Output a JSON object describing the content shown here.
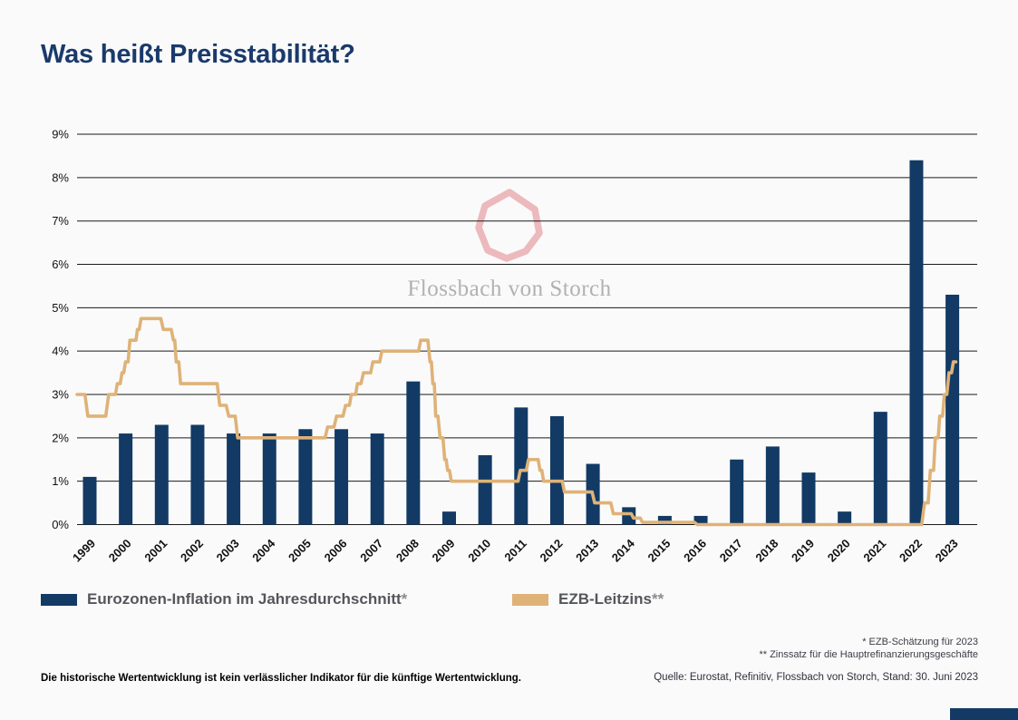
{
  "page": {
    "title": "Was heißt Preisstabilität?"
  },
  "legend": {
    "series1_label": "Eurozonen-Inflation im Jahresdurchschnitt",
    "series1_mark": "*",
    "series2_label": "EZB-Leitzins",
    "series2_mark": "**"
  },
  "footnotes": {
    "line1": "* EZB-Schätzung für 2023",
    "line2": "** Zinssatz für die Hauptrefinanzierungsgeschäfte"
  },
  "disclaimer": "Die historische Wertentwicklung ist kein verlässlicher Indikator für die künftige Wertentwicklung.",
  "source": "Quelle: Eurostat, Refinitiv, Flossbach von Storch, Stand: 30. Juni 2023",
  "watermark": {
    "text": "Flossbach von Storch"
  },
  "colors": {
    "bar": "#123a65",
    "line": "#dfb277",
    "title": "#1a3a6b",
    "grid": "#1a1a1a",
    "axis_text": "#111111",
    "legend_text": "#55565b",
    "watermark_logo": "#eab3b6",
    "watermark_text": "#b2b1b1"
  },
  "chart_data": {
    "type": "bar",
    "title": "",
    "xlabel": "",
    "ylabel": "",
    "ylim": [
      0,
      9
    ],
    "grid": "horizontal",
    "legend_position": "bottom",
    "y_ticks": [
      "0%",
      "1%",
      "2%",
      "3%",
      "4%",
      "5%",
      "6%",
      "7%",
      "8%",
      "9%"
    ],
    "categories": [
      "1999",
      "2000",
      "2001",
      "2002",
      "2003",
      "2004",
      "2005",
      "2006",
      "2007",
      "2008",
      "2009",
      "2010",
      "2011",
      "2012",
      "2013",
      "2014",
      "2015",
      "2016",
      "2017",
      "2018",
      "2019",
      "2020",
      "2021",
      "2022",
      "2023"
    ],
    "series": [
      {
        "name": "Eurozonen-Inflation im Jahresdurchschnitt*",
        "type": "bar",
        "values": [
          1.1,
          2.1,
          2.3,
          2.3,
          2.1,
          2.1,
          2.2,
          2.2,
          2.1,
          3.3,
          0.3,
          1.6,
          2.7,
          2.5,
          1.4,
          0.4,
          0.2,
          0.2,
          1.5,
          1.8,
          1.2,
          0.3,
          2.6,
          8.4,
          5.3
        ]
      },
      {
        "name": "EZB-Leitzins**",
        "type": "line",
        "points": [
          [
            1999.0,
            3.0
          ],
          [
            1999.22,
            3.0
          ],
          [
            1999.3,
            2.5
          ],
          [
            1999.8,
            2.5
          ],
          [
            1999.88,
            3.0
          ],
          [
            2000.07,
            3.0
          ],
          [
            2000.12,
            3.25
          ],
          [
            2000.2,
            3.25
          ],
          [
            2000.25,
            3.5
          ],
          [
            2000.3,
            3.5
          ],
          [
            2000.35,
            3.75
          ],
          [
            2000.42,
            3.75
          ],
          [
            2000.47,
            4.25
          ],
          [
            2000.64,
            4.25
          ],
          [
            2000.68,
            4.5
          ],
          [
            2000.73,
            4.5
          ],
          [
            2000.78,
            4.75
          ],
          [
            2001.33,
            4.75
          ],
          [
            2001.4,
            4.5
          ],
          [
            2001.62,
            4.5
          ],
          [
            2001.68,
            4.25
          ],
          [
            2001.72,
            4.25
          ],
          [
            2001.76,
            3.75
          ],
          [
            2001.83,
            3.75
          ],
          [
            2001.88,
            3.25
          ],
          [
            2002.9,
            3.25
          ],
          [
            2002.97,
            2.75
          ],
          [
            2003.15,
            2.75
          ],
          [
            2003.22,
            2.5
          ],
          [
            2003.4,
            2.5
          ],
          [
            2003.47,
            2.0
          ],
          [
            2005.9,
            2.0
          ],
          [
            2005.97,
            2.25
          ],
          [
            2006.15,
            2.25
          ],
          [
            2006.22,
            2.5
          ],
          [
            2006.4,
            2.5
          ],
          [
            2006.47,
            2.75
          ],
          [
            2006.58,
            2.75
          ],
          [
            2006.63,
            3.0
          ],
          [
            2006.75,
            3.0
          ],
          [
            2006.8,
            3.25
          ],
          [
            2006.9,
            3.25
          ],
          [
            2006.97,
            3.5
          ],
          [
            2007.17,
            3.5
          ],
          [
            2007.23,
            3.75
          ],
          [
            2007.42,
            3.75
          ],
          [
            2007.48,
            4.0
          ],
          [
            2008.5,
            4.0
          ],
          [
            2008.56,
            4.25
          ],
          [
            2008.76,
            4.25
          ],
          [
            2008.82,
            3.75
          ],
          [
            2008.86,
            3.75
          ],
          [
            2008.9,
            3.25
          ],
          [
            2008.94,
            3.25
          ],
          [
            2008.98,
            2.5
          ],
          [
            2009.04,
            2.5
          ],
          [
            2009.1,
            2.0
          ],
          [
            2009.18,
            2.0
          ],
          [
            2009.23,
            1.5
          ],
          [
            2009.27,
            1.5
          ],
          [
            2009.31,
            1.25
          ],
          [
            2009.36,
            1.25
          ],
          [
            2009.41,
            1.0
          ],
          [
            2011.27,
            1.0
          ],
          [
            2011.33,
            1.25
          ],
          [
            2011.5,
            1.25
          ],
          [
            2011.56,
            1.5
          ],
          [
            2011.83,
            1.5
          ],
          [
            2011.88,
            1.25
          ],
          [
            2011.93,
            1.25
          ],
          [
            2011.98,
            1.0
          ],
          [
            2012.5,
            1.0
          ],
          [
            2012.56,
            0.75
          ],
          [
            2013.33,
            0.75
          ],
          [
            2013.4,
            0.5
          ],
          [
            2013.85,
            0.5
          ],
          [
            2013.92,
            0.25
          ],
          [
            2014.42,
            0.25
          ],
          [
            2014.48,
            0.15
          ],
          [
            2014.67,
            0.15
          ],
          [
            2014.73,
            0.05
          ],
          [
            2016.18,
            0.05
          ],
          [
            2016.25,
            0.0
          ],
          [
            2022.5,
            0.0
          ],
          [
            2022.58,
            0.5
          ],
          [
            2022.68,
            0.5
          ],
          [
            2022.74,
            1.25
          ],
          [
            2022.83,
            1.25
          ],
          [
            2022.88,
            2.0
          ],
          [
            2022.96,
            2.0
          ],
          [
            2023.0,
            2.5
          ],
          [
            2023.08,
            2.5
          ],
          [
            2023.13,
            3.0
          ],
          [
            2023.2,
            3.0
          ],
          [
            2023.26,
            3.5
          ],
          [
            2023.33,
            3.5
          ],
          [
            2023.38,
            3.75
          ],
          [
            2023.45,
            3.75
          ]
        ]
      }
    ]
  }
}
